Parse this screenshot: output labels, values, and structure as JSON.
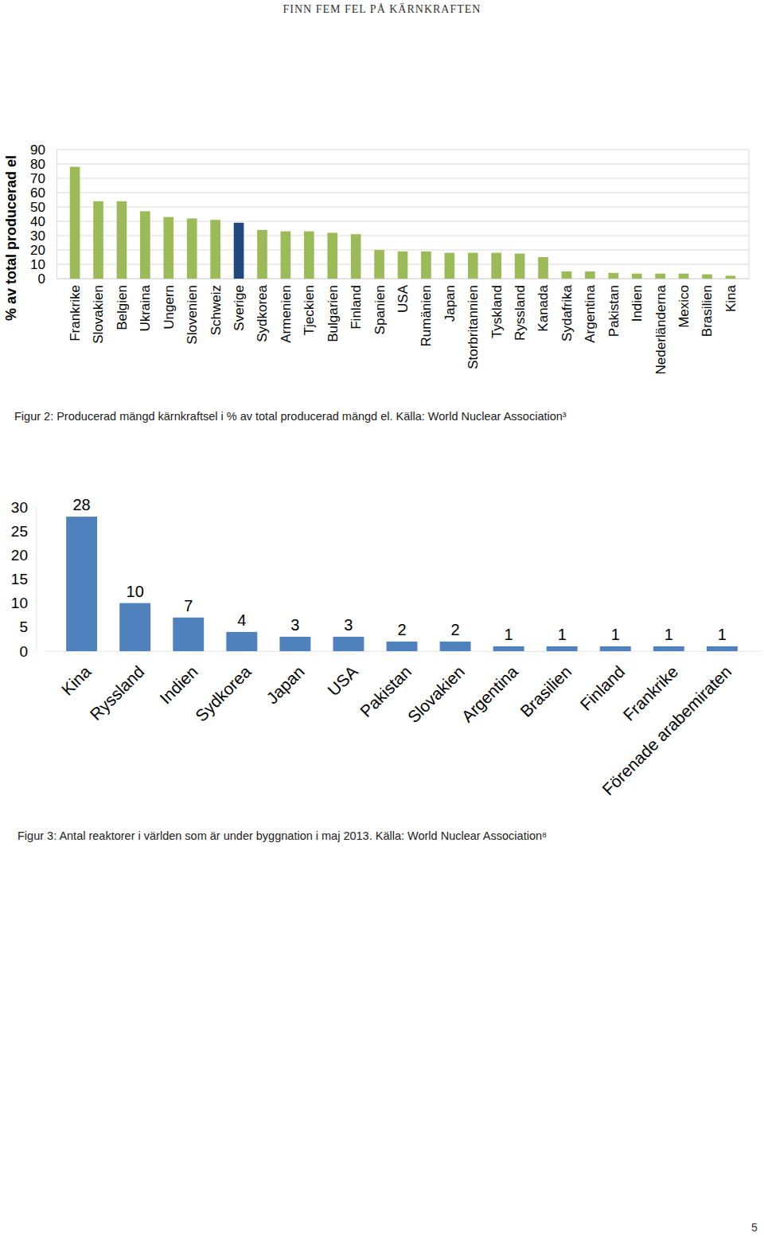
{
  "header": "FINN FEM FEL PÅ KÄRNKRAFTEN",
  "page_number": "5",
  "chart_data": [
    {
      "type": "bar",
      "y_label": "% av total producerad el",
      "caption": "Figur 2: Producerad mängd kärnkraftsel i % av total producerad mängd el. Källa: World Nuclear Association³",
      "categories": [
        "Frankrike",
        "Slovakien",
        "Belgien",
        "Ukraina",
        "Ungern",
        "Slovenien",
        "Schweiz",
        "Sverige",
        "Sydkorea",
        "Armenien",
        "Tjeckien",
        "Bulgarien",
        "Finland",
        "Spanien",
        "USA",
        "Rumänien",
        "Japan",
        "Storbritannien",
        "Tyskland",
        "Ryssland",
        "Kanada",
        "Sydafrika",
        "Argentina",
        "Pakistan",
        "Indien",
        "Nederländerna",
        "Mexico",
        "Brasilien",
        "Kina"
      ],
      "values": [
        78,
        54,
        54,
        47,
        43,
        42,
        41,
        39,
        34,
        33,
        33,
        32,
        31,
        20,
        19,
        19,
        18,
        18,
        18,
        17.5,
        15,
        5,
        5,
        4,
        3.5,
        3.5,
        3.5,
        3,
        2
      ],
      "colors": [
        "#9bbb59",
        "#9bbb59",
        "#9bbb59",
        "#9bbb59",
        "#9bbb59",
        "#9bbb59",
        "#9bbb59",
        "#1f497d",
        "#9bbb59",
        "#9bbb59",
        "#9bbb59",
        "#9bbb59",
        "#9bbb59",
        "#9bbb59",
        "#9bbb59",
        "#9bbb59",
        "#9bbb59",
        "#9bbb59",
        "#9bbb59",
        "#9bbb59",
        "#9bbb59",
        "#9bbb59",
        "#9bbb59",
        "#9bbb59",
        "#9bbb59",
        "#9bbb59",
        "#9bbb59",
        "#9bbb59",
        "#9bbb59"
      ],
      "ylim": [
        0,
        90
      ],
      "yticks": [
        0,
        10,
        20,
        30,
        40,
        50,
        60,
        70,
        80,
        90
      ],
      "grid": true
    },
    {
      "type": "bar",
      "caption": "Figur 3: Antal reaktorer i världen som är under byggnation i maj 2013. Källa: World Nuclear Association⁸",
      "categories": [
        "Kina",
        "Ryssland",
        "Indien",
        "Sydkorea",
        "Japan",
        "USA",
        "Pakistan",
        "Slovakien",
        "Argentina",
        "Brasilien",
        "Finland",
        "Frankrike",
        "Förenade arabemiraten"
      ],
      "values": [
        28,
        10,
        7,
        4,
        3,
        3,
        2,
        2,
        1,
        1,
        1,
        1,
        1
      ],
      "color": "#4f81bd",
      "ylim": [
        0,
        30
      ],
      "yticks": [
        0,
        5,
        10,
        15,
        20,
        25,
        30
      ],
      "grid": false,
      "data_labels": true
    }
  ]
}
